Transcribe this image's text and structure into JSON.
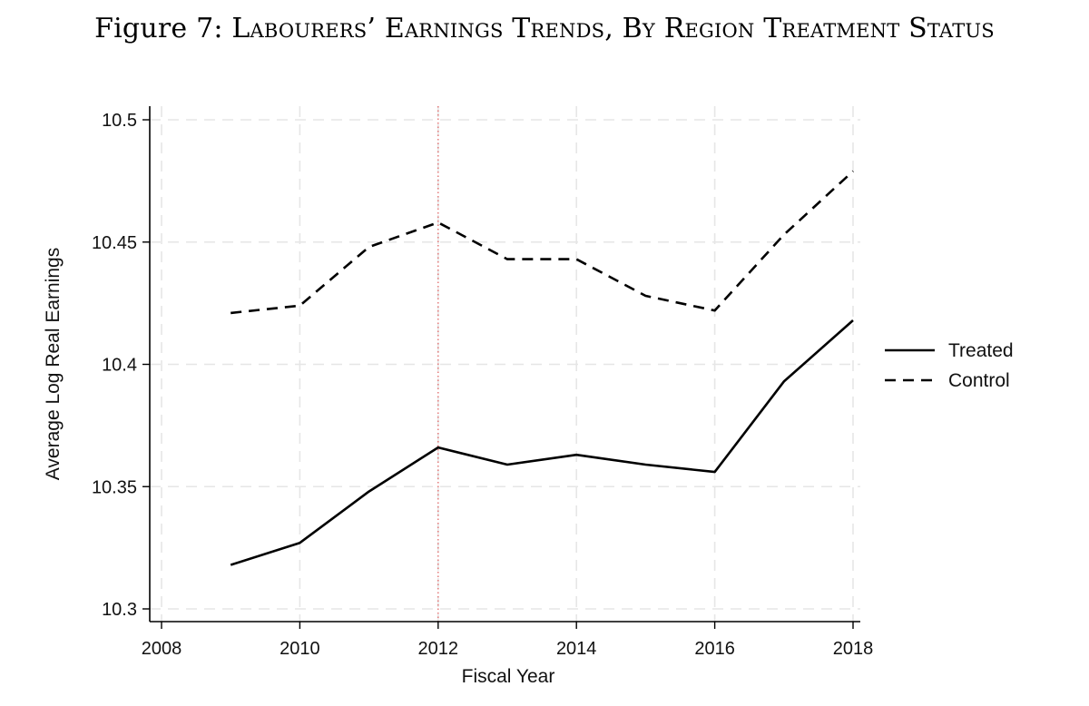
{
  "figure": {
    "prefix": "Figure 7: ",
    "title": "Labourers’ Earnings Trends, By Region Treatment Status"
  },
  "chart_data": {
    "type": "line",
    "xlabel": "Fiscal Year",
    "ylabel": "Average Log Real Earnings",
    "xlim": [
      2008,
      2018
    ],
    "ylim": [
      10.3,
      10.5
    ],
    "xticks": [
      2008,
      2010,
      2012,
      2014,
      2016,
      2018
    ],
    "yticks": [
      10.3,
      10.35,
      10.4,
      10.45,
      10.5
    ],
    "ytick_labels": [
      "10.3",
      "10.35",
      "10.4",
      "10.45",
      "10.5"
    ],
    "grid": true,
    "vertical_reference_line": {
      "x": 2012,
      "color": "#e06666",
      "style": "dotted"
    },
    "legend_position": "right",
    "x": [
      2009,
      2010,
      2011,
      2012,
      2013,
      2014,
      2015,
      2016,
      2017,
      2018
    ],
    "series": [
      {
        "name": "Treated",
        "style": "solid",
        "color": "#000000",
        "values": [
          10.318,
          10.327,
          10.348,
          10.366,
          10.359,
          10.363,
          10.359,
          10.356,
          10.393,
          10.418
        ]
      },
      {
        "name": "Control",
        "style": "dashed",
        "color": "#000000",
        "values": [
          10.421,
          10.424,
          10.448,
          10.458,
          10.443,
          10.443,
          10.428,
          10.422,
          10.453,
          10.479
        ]
      }
    ]
  }
}
